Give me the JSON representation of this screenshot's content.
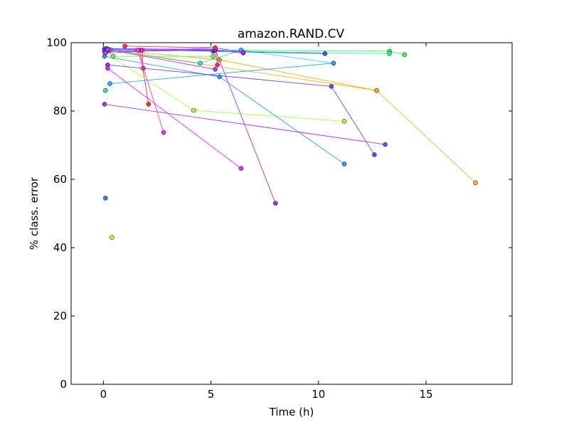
{
  "chart_data": {
    "type": "scatter",
    "title": "amazon.RAND.CV",
    "xlabel": "Time (h)",
    "ylabel": "% class. error",
    "xlim": [
      -1.5,
      19
    ],
    "ylim": [
      0,
      100
    ],
    "xticks": [
      0,
      5,
      10,
      15
    ],
    "yticks": [
      0,
      20,
      40,
      60,
      80,
      100
    ],
    "grid": false,
    "legend": "none",
    "series": [
      {
        "color": "#ff3300",
        "points": [
          [
            0.1,
            98.2
          ],
          [
            1.7,
            97.8
          ],
          [
            2.1,
            82.0
          ]
        ]
      },
      {
        "color": "#ffaa00",
        "points": [
          [
            0.2,
            98.0
          ],
          [
            5.4,
            95.0
          ],
          [
            12.7,
            86.0
          ]
        ]
      },
      {
        "color": "#ffb020",
        "points": [
          [
            0.3,
            97.8
          ],
          [
            12.7,
            86.0
          ],
          [
            17.3,
            59.0
          ]
        ]
      },
      {
        "color": "#ddee00",
        "points": [
          [
            0.4,
            43.0
          ]
        ]
      },
      {
        "color": "#aaff33",
        "points": [
          [
            0.1,
            97.0
          ],
          [
            4.2,
            80.2
          ],
          [
            11.2,
            77.0
          ]
        ]
      },
      {
        "color": "#66ff33",
        "points": [
          [
            0.15,
            97.5
          ],
          [
            0.45,
            96.0
          ],
          [
            5.1,
            96.0
          ]
        ]
      },
      {
        "color": "#33ff55",
        "points": [
          [
            0.2,
            98.0
          ],
          [
            13.3,
            97.5
          ],
          [
            14.0,
            96.5
          ]
        ]
      },
      {
        "color": "#22ee88",
        "points": [
          [
            0.1,
            86.0
          ]
        ]
      },
      {
        "color": "#22ffaa",
        "points": [
          [
            0.2,
            98.0
          ],
          [
            13.3,
            96.8
          ]
        ]
      },
      {
        "color": "#33ddcc",
        "points": [
          [
            0.3,
            98.0
          ],
          [
            4.5,
            94.0
          ],
          [
            6.4,
            97.8
          ],
          [
            10.7,
            94.0
          ]
        ]
      },
      {
        "color": "#22ccff",
        "points": [
          [
            0.3,
            98.0
          ],
          [
            6.4,
            97.8
          ]
        ]
      },
      {
        "color": "#22aaff",
        "points": [
          [
            0.3,
            88.0
          ],
          [
            10.7,
            94.0
          ]
        ]
      },
      {
        "color": "#3399ff",
        "points": [
          [
            0.05,
            96.0
          ],
          [
            5.4,
            90.0
          ],
          [
            11.2,
            64.5
          ]
        ]
      },
      {
        "color": "#3377ff",
        "points": [
          [
            0.1,
            54.5
          ]
        ]
      },
      {
        "color": "#4455ee",
        "points": [
          [
            0.05,
            98.2
          ],
          [
            5.1,
            97.5
          ],
          [
            10.3,
            96.8
          ]
        ]
      },
      {
        "color": "#6644ff",
        "points": [
          [
            0.2,
            93.5
          ],
          [
            10.6,
            87.2
          ],
          [
            12.6,
            67.2
          ]
        ]
      },
      {
        "color": "#7733ff",
        "points": [
          [
            0.05,
            97.5
          ],
          [
            5.2,
            97.8
          ],
          [
            6.5,
            97.0
          ]
        ]
      },
      {
        "color": "#9933ff",
        "points": [
          [
            0.15,
            98.3
          ],
          [
            5.2,
            98.0
          ],
          [
            8.0,
            53.0
          ]
        ]
      },
      {
        "color": "#aa33ee",
        "points": [
          [
            0.05,
            82.0
          ],
          [
            13.1,
            70.2
          ]
        ]
      },
      {
        "color": "#bb33ff",
        "points": [
          [
            0.2,
            98.0
          ],
          [
            5.2,
            92.2
          ]
        ]
      },
      {
        "color": "#cc22ff",
        "points": [
          [
            0.1,
            97.0
          ],
          [
            5.2,
            98.5
          ],
          [
            6.5,
            97.2
          ]
        ]
      },
      {
        "color": "#ee22ff",
        "points": [
          [
            0.2,
            92.5
          ],
          [
            6.4,
            63.2
          ]
        ]
      },
      {
        "color": "#ff33dd",
        "points": [
          [
            1.6,
            97.8
          ],
          [
            2.8,
            73.7
          ]
        ]
      },
      {
        "color": "#ff22aa",
        "points": [
          [
            1.8,
            97.8
          ],
          [
            1.85,
            92.5
          ]
        ]
      },
      {
        "color": "#ff2288",
        "points": [
          [
            1.0,
            99.0
          ],
          [
            5.2,
            98.5
          ],
          [
            5.3,
            93.5
          ]
        ]
      }
    ]
  }
}
